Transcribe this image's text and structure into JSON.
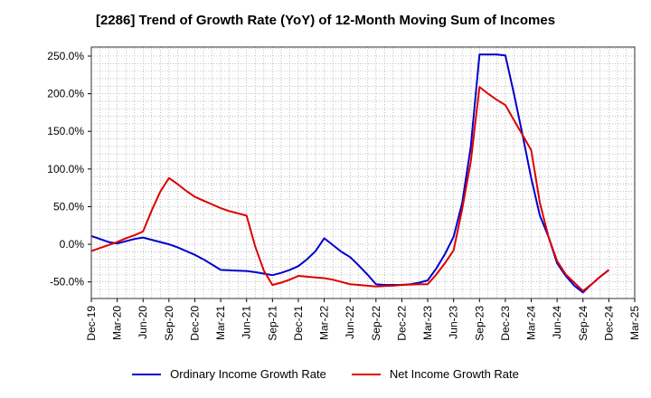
{
  "title": "[2286]  Trend of Growth Rate (YoY) of 12-Month Moving Sum of Incomes",
  "colors": {
    "ordinary": "#0000cc",
    "net": "#dd0000",
    "grid": "#999999",
    "axis": "#000000"
  },
  "chart_data": {
    "type": "line",
    "title": "[2286]  Trend of Growth Rate (YoY) of 12-Month Moving Sum of Incomes",
    "xlabel": "",
    "ylabel": "",
    "grid": true,
    "legend": "bottom",
    "x_tick_labels": [
      "Dec-19",
      "Mar-20",
      "Jun-20",
      "Sep-20",
      "Dec-20",
      "Mar-21",
      "Jun-21",
      "Sep-21",
      "Dec-21",
      "Mar-22",
      "Jun-22",
      "Sep-22",
      "Dec-22",
      "Mar-23",
      "Jun-23",
      "Sep-23",
      "Dec-23",
      "Mar-24",
      "Jun-24",
      "Sep-24",
      "Dec-24",
      "Mar-25"
    ],
    "y_ticks": [
      -50,
      0,
      50,
      100,
      150,
      200,
      250
    ],
    "y_tick_labels": [
      "-50.0%",
      "0.0%",
      "50.0%",
      "100.0%",
      "150.0%",
      "200.0%",
      "250.0%"
    ],
    "xlim": [
      "Dec-19",
      "Mar-25"
    ],
    "ylim": [
      -72,
      262
    ],
    "x": [
      "Dec-19",
      "Jan-20",
      "Feb-20",
      "Mar-20",
      "Apr-20",
      "May-20",
      "Jun-20",
      "Jul-20",
      "Aug-20",
      "Sep-20",
      "Oct-20",
      "Nov-20",
      "Dec-20",
      "Jan-21",
      "Feb-21",
      "Mar-21",
      "Apr-21",
      "May-21",
      "Jun-21",
      "Jul-21",
      "Aug-21",
      "Sep-21",
      "Oct-21",
      "Nov-21",
      "Dec-21",
      "Jan-22",
      "Feb-22",
      "Mar-22",
      "Apr-22",
      "May-22",
      "Jun-22",
      "Jul-22",
      "Aug-22",
      "Sep-22",
      "Oct-22",
      "Nov-22",
      "Dec-22",
      "Jan-23",
      "Feb-23",
      "Mar-23",
      "Apr-23",
      "May-23",
      "Jun-23",
      "Jul-23",
      "Aug-23",
      "Sep-23",
      "Oct-23",
      "Nov-23",
      "Dec-23",
      "Jan-24",
      "Feb-24",
      "Mar-24",
      "Apr-24",
      "May-24",
      "Jun-24",
      "Jul-24",
      "Aug-24",
      "Sep-24",
      "Oct-24",
      "Nov-24",
      "Dec-24"
    ],
    "series": [
      {
        "name": "Ordinary Income Growth Rate",
        "color": "#0000cc",
        "values": [
          11,
          7,
          3,
          1,
          4,
          7,
          9,
          6,
          3,
          0,
          -4,
          -9,
          -14,
          -20,
          -27,
          -34,
          -34.5,
          -35,
          -35.5,
          -37,
          -39,
          -41,
          -38,
          -34,
          -29,
          -20,
          -9,
          8,
          -1,
          -10,
          -17,
          -28,
          -40,
          -53,
          -54,
          -54,
          -54,
          -53,
          -51,
          -48,
          -32,
          -13,
          10,
          55,
          130,
          252,
          252,
          252,
          251,
          200,
          145,
          88,
          38,
          10,
          -25,
          -42,
          -55,
          -64,
          -53,
          -43,
          -34
        ]
      },
      {
        "name": "Net Income Growth Rate",
        "color": "#dd0000",
        "values": [
          -9,
          -5,
          -1,
          3,
          8,
          12,
          17,
          45,
          70,
          88,
          80,
          71,
          63,
          58,
          53,
          48,
          44,
          41,
          38,
          -3,
          -35,
          -54,
          -51,
          -47,
          -42,
          -43,
          -44,
          -45,
          -47,
          -50,
          -53,
          -54,
          -55,
          -56,
          -55.5,
          -55,
          -54,
          -53.5,
          -53,
          -53,
          -40,
          -25,
          -8,
          47,
          110,
          209,
          200,
          192,
          185,
          165,
          145,
          125,
          55,
          10,
          -22,
          -40,
          -51,
          -62,
          -53,
          -43,
          -34
        ]
      }
    ]
  },
  "legend": {
    "ordinary_label": "Ordinary Income Growth Rate",
    "net_label": "Net Income Growth Rate"
  }
}
